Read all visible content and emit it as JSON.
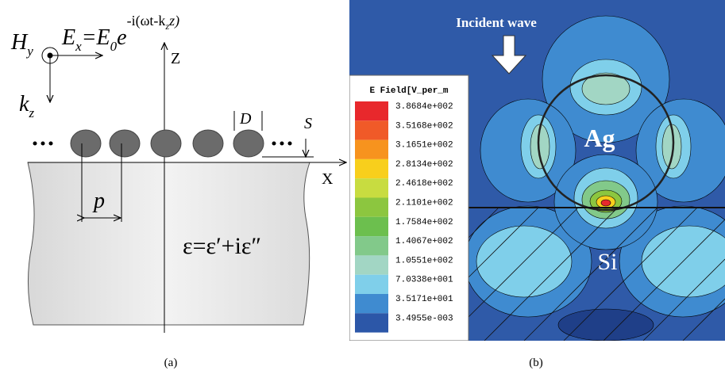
{
  "panel_a": {
    "caption": "(a)",
    "h_field": {
      "symbol": "H",
      "sub": "y"
    },
    "e_field": {
      "symbol": "E",
      "sub": "x",
      "eq": "=E",
      "eq_sub": "0",
      "base": "e",
      "exponent": "-i(ωt-k",
      "exponent_sub": "z",
      "exponent_end": "z)"
    },
    "wavevector": {
      "symbol": "k",
      "sub": "z"
    },
    "z_axis": "Z",
    "x_axis": "X",
    "diameter": "D",
    "spacing": "S",
    "period": "p",
    "permittivity": "ε=ε′+iε″"
  },
  "panel_b": {
    "caption": "(b)",
    "incident": "Incident wave",
    "particle": "Ag",
    "substrate": "Si",
    "legend": {
      "title": "E Field[V_per_m",
      "entries": [
        {
          "label": "3.8684e+002",
          "color": "#e8282c"
        },
        {
          "label": "3.5168e+002",
          "color": "#f05a28"
        },
        {
          "label": "3.1651e+002",
          "color": "#f7931e"
        },
        {
          "label": "2.8134e+002",
          "color": "#f8cf1c"
        },
        {
          "label": "2.4618e+002",
          "color": "#c8dc40"
        },
        {
          "label": "2.1101e+002",
          "color": "#8cc63f"
        },
        {
          "label": "1.7584e+002",
          "color": "#6cbf4e"
        },
        {
          "label": "1.4067e+002",
          "color": "#82c98a"
        },
        {
          "label": "1.0551e+002",
          "color": "#a2d6c4"
        },
        {
          "label": "7.0338e+001",
          "color": "#7fcfea"
        },
        {
          "label": "3.5171e+001",
          "color": "#3f8bd0"
        },
        {
          "label": "3.4955e-003",
          "color": "#2c57a8"
        }
      ]
    }
  }
}
